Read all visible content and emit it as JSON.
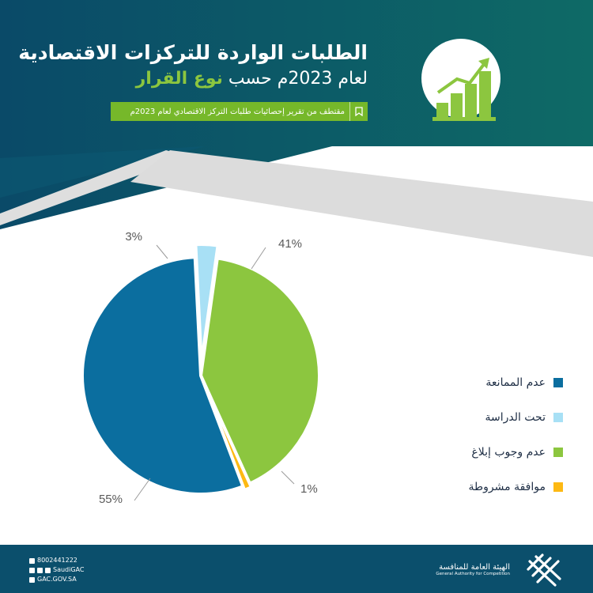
{
  "header": {
    "title_line1": "الطلبات الواردة للتركزات الاقتصادية",
    "title_line2_prefix": "لعام 2023م حسب ",
    "title_line2_highlight": "نوع القرار",
    "source_note": "مقتطف من تقرير إحصائيات طلبات التركز الاقتصادي لعام 2023م",
    "icon": "growth-bar-chart-icon"
  },
  "colors": {
    "dark_teal": "#0b4f6c",
    "green": "#76b82a",
    "light_green": "#8cc63f",
    "gray_band": "#dcdcdc"
  },
  "chart_data": {
    "type": "pie",
    "categories": [
      "عدم الممانعة",
      "تحت الدراسة",
      "عدم وجوب إبلاغ",
      "موافقة مشروطة"
    ],
    "values": [
      55,
      3,
      41,
      1
    ],
    "value_labels": [
      "55%",
      "3%",
      "41%",
      "1%"
    ],
    "colors": [
      "#0b6e9f",
      "#a8e0f5",
      "#8cc63f",
      "#fdb913"
    ],
    "legend_position": "right"
  },
  "footer": {
    "phone": "8002441222",
    "social": "SaudiGAC",
    "website": "GAC.GOV.SA",
    "org_name_ar": "الهيئة العامة للمنافسة",
    "org_name_en": "General Authority for Competition"
  }
}
